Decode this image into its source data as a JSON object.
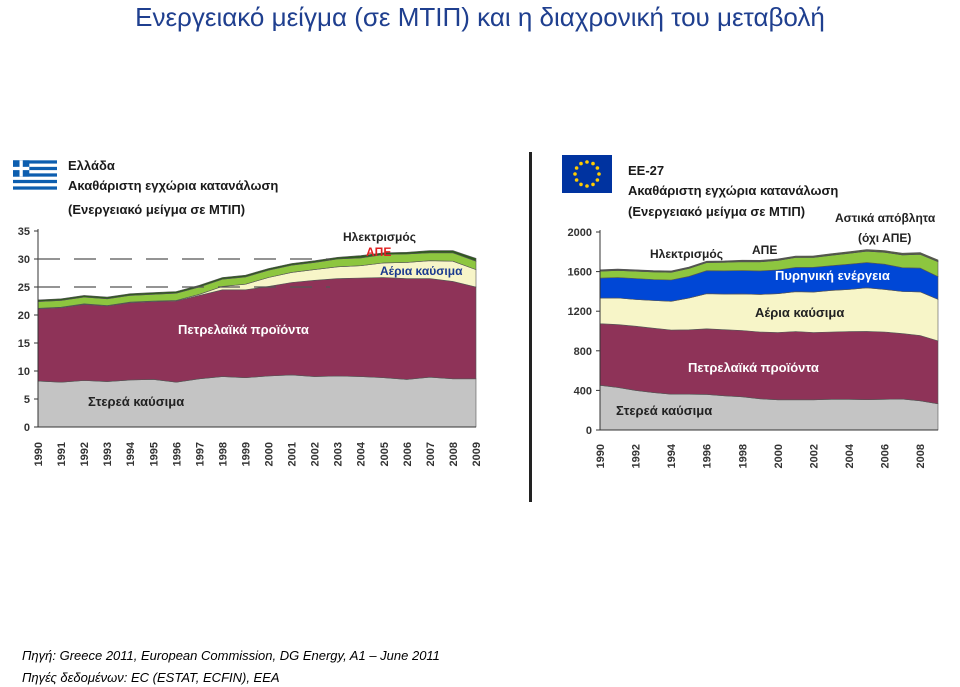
{
  "slide": {
    "title": "Ενεργειακό μείγμα (σε ΜΤΙΠ)  και η διαχρονική του μεταβολή",
    "source_line": "Πηγή: Greece 2011, European Commission, DG Energy, A1 – June 2011",
    "data_sources_line": "Πηγές δεδομένων: EC (ESTAT, ECFIN), EEA"
  },
  "chart_data": [
    {
      "type": "area",
      "country": "Ελλάδα",
      "title": "Ακαθάριστη εγχώρια κατανάλωση",
      "subtitle": "(Ενεργειακό μείγμα σε ΜΤΙΠ)",
      "ylim": [
        0,
        35
      ],
      "yticks": [
        0,
        5,
        10,
        15,
        20,
        25,
        30,
        35
      ],
      "x": [
        1990,
        1991,
        1992,
        1993,
        1994,
        1995,
        1996,
        1997,
        1998,
        1999,
        2000,
        2001,
        2002,
        2003,
        2004,
        2005,
        2006,
        2007,
        2008,
        2009
      ],
      "series": [
        {
          "name": "Στερεά καύσιμα",
          "color": "#c4c4c4",
          "values": [
            8.2,
            8.0,
            8.3,
            8.1,
            8.4,
            8.5,
            8.0,
            8.6,
            9.0,
            8.8,
            9.1,
            9.3,
            9.0,
            9.1,
            9.0,
            8.8,
            8.5,
            8.9,
            8.6,
            8.6
          ]
        },
        {
          "name": "Πετρελαϊκά προϊόντα",
          "color": "#8e3358",
          "values": [
            12.9,
            13.3,
            13.6,
            13.5,
            13.8,
            13.9,
            14.5,
            14.9,
            15.5,
            15.7,
            16.0,
            16.5,
            17.2,
            17.4,
            17.6,
            17.9,
            18.0,
            17.6,
            17.4,
            16.4
          ]
        },
        {
          "name": "Αέρια καύσιμα",
          "color": "#f7f5c8",
          "values": [
            0.1,
            0.1,
            0.1,
            0.1,
            0.1,
            0.1,
            0.1,
            0.2,
            0.6,
            1.0,
            1.6,
            1.8,
            1.9,
            2.1,
            2.2,
            2.6,
            2.9,
            3.2,
            3.6,
            3.1
          ]
        },
        {
          "name": "ΑΠΕ",
          "color": "#8dc63f",
          "values": [
            1.2,
            1.2,
            1.2,
            1.2,
            1.2,
            1.2,
            1.3,
            1.3,
            1.3,
            1.3,
            1.3,
            1.3,
            1.3,
            1.4,
            1.4,
            1.5,
            1.5,
            1.4,
            1.5,
            1.5
          ]
        },
        {
          "name": "Ηλεκτρισμός",
          "color": "#2e5a1c",
          "values": [
            0.3,
            0.3,
            0.3,
            0.3,
            0.3,
            0.3,
            0.3,
            0.3,
            0.3,
            0.3,
            0.3,
            0.3,
            0.3,
            0.3,
            0.4,
            0.3,
            0.3,
            0.4,
            0.4,
            0.5
          ]
        }
      ],
      "labels": {
        "solid": "Στερεά καύσιμα",
        "oil": "Πετρελαϊκά προϊόντα",
        "gas": "Αέρια καύσιμα",
        "res": "ΑΠΕ",
        "elec": "Ηλεκτρισμός"
      }
    },
    {
      "type": "area",
      "country": "ΕΕ-27",
      "title": "Ακαθάριστη εγχώρια κατανάλωση",
      "subtitle": "(Ενεργειακό μείγμα σε ΜΤΙΠ)",
      "ylim": [
        0,
        2000
      ],
      "yticks": [
        0,
        400,
        800,
        1200,
        1600,
        2000
      ],
      "x": [
        1990,
        1991,
        1992,
        1993,
        1994,
        1995,
        1996,
        1997,
        1998,
        1999,
        2000,
        2001,
        2002,
        2003,
        2004,
        2005,
        2006,
        2007,
        2008,
        2009
      ],
      "xticklabels": [
        1990,
        1992,
        1994,
        1996,
        1998,
        2000,
        2002,
        2004,
        2006,
        2008
      ],
      "series": [
        {
          "name": "Στερεά καύσιμα",
          "color": "#c4c4c4",
          "values": [
            452,
            430,
            400,
            378,
            362,
            362,
            360,
            345,
            335,
            315,
            305,
            305,
            305,
            310,
            310,
            306,
            310,
            312,
            295,
            265
          ]
        },
        {
          "name": "Πετρελαϊκά προϊόντα",
          "color": "#8e3358",
          "values": [
            622,
            635,
            648,
            650,
            648,
            650,
            662,
            668,
            670,
            675,
            680,
            690,
            680,
            680,
            685,
            690,
            680,
            662,
            660,
            635
          ]
        },
        {
          "name": "Αέρια καύσιμα",
          "color": "#f7f5c8",
          "values": [
            258,
            268,
            270,
            280,
            290,
            320,
            355,
            360,
            370,
            380,
            392,
            402,
            408,
            420,
            425,
            440,
            430,
            425,
            440,
            420
          ]
        },
        {
          "name": "Πυρηνική ενέργεια",
          "color": "#0047d6",
          "values": [
            202,
            207,
            212,
            212,
            215,
            220,
            232,
            235,
            235,
            237,
            240,
            245,
            250,
            250,
            255,
            255,
            255,
            240,
            240,
            230
          ]
        },
        {
          "name": "ΑΠΕ",
          "color": "#8dc63f",
          "values": [
            70,
            72,
            74,
            76,
            78,
            80,
            82,
            86,
            90,
            92,
            96,
            100,
            100,
            105,
            110,
            115,
            120,
            130,
            140,
            150
          ]
        },
        {
          "name": "Ηλεκτρισμός",
          "color": "#2e5a1c",
          "values": [
            8,
            8,
            8,
            8,
            8,
            8,
            8,
            8,
            8,
            8,
            8,
            8,
            8,
            8,
            8,
            8,
            8,
            8,
            8,
            8
          ]
        },
        {
          "name": "Αστικά απόβλητα (όχι ΑΠΕ)",
          "color": "#5a6b2a",
          "values": [
            6,
            6,
            6,
            6,
            6,
            6,
            6,
            6,
            7,
            7,
            7,
            7,
            8,
            8,
            8,
            8,
            9,
            9,
            9,
            9
          ]
        }
      ],
      "labels": {
        "solid": "Στερεά καύσιμα",
        "oil": "Πετρελαϊκά προϊόντα",
        "gas": "Αέρια καύσιμα",
        "nuclear": "Πυρηνική ενέργεια",
        "res": "ΑΠΕ",
        "elec": "Ηλεκτρισμός",
        "waste_1": "Αστικά απόβλητα",
        "waste_2": "(όχι ΑΠΕ)"
      }
    }
  ]
}
